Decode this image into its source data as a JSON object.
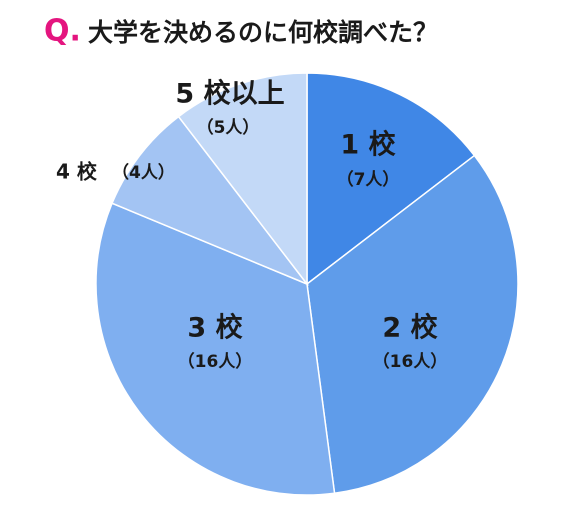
{
  "chart_data": {
    "type": "pie",
    "title_prefix": "Q.",
    "title": "大学を決めるのに何校調べた？",
    "categories": [
      "1 校",
      "2 校",
      "3 校",
      "4 校",
      "5 校以上"
    ],
    "values": [
      7,
      16,
      16,
      4,
      5
    ],
    "value_labels": [
      "（7人）",
      "（16人）",
      "（16人）",
      "（4人）",
      "（5人）"
    ],
    "colors": [
      "#4087e6",
      "#5f9cea",
      "#7faff0",
      "#a3c4f3",
      "#c3d9f7"
    ]
  }
}
